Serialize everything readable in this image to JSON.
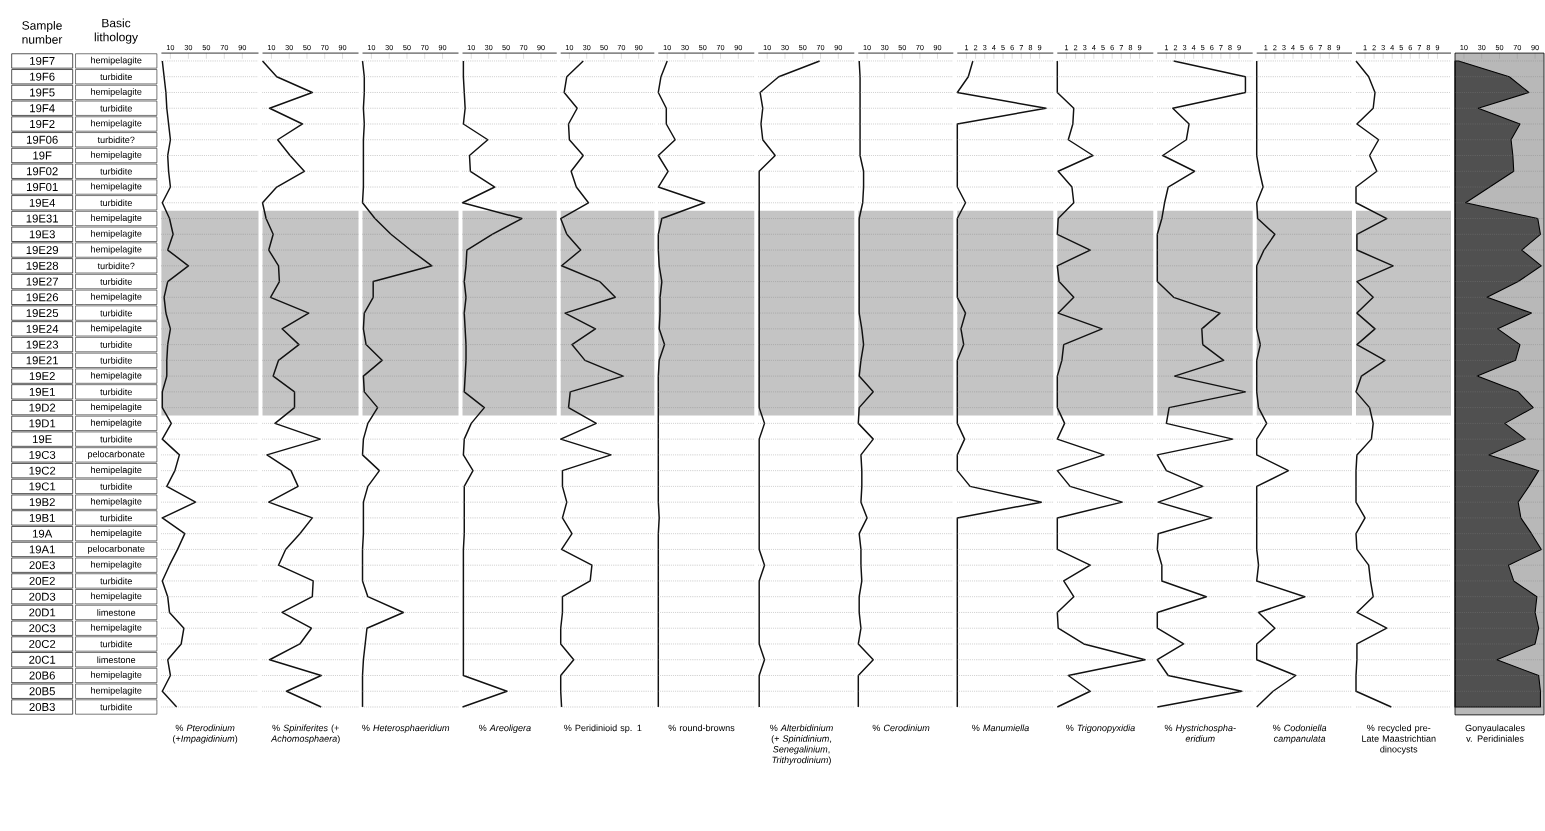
{
  "chart_data": [
    {
      "type": "line",
      "orientation": "horizontal",
      "grid": "y",
      "color": "#111111",
      "tick_labels": "x",
      "ylabel": "Sample number",
      "y2label": "Basic lithology",
      "categories": [
        "19F7",
        "19F6",
        "19F5",
        "19F4",
        "19F2",
        "19F06",
        "19F",
        "19F02",
        "19F01",
        "19E4",
        "19E31",
        "19E3",
        "19E29",
        "19E28",
        "19E27",
        "19E26",
        "19E25",
        "19E24",
        "19E23",
        "19E21",
        "19E2",
        "19E1",
        "19D2",
        "19D1",
        "19E",
        "19C3",
        "19C2",
        "19C1",
        "19B2",
        "19B1",
        "19A",
        "19A1",
        "20E3",
        "20E2",
        "20D3",
        "20D1",
        "20C3",
        "20C2",
        "20C1",
        "20B6",
        "20B5",
        "20B3"
      ],
      "y2_categories": [
        "hemipelagite",
        "turbidite",
        "hemipelagite",
        "turbidite",
        "hemipelagite",
        "turbidite?",
        "hemipelagite",
        "turbidite",
        "hemipelagite",
        "turbidite",
        "hemipelagite",
        "hemipelagite",
        "hemipelagite",
        "turbidite?",
        "turbidite",
        "hemipelagite",
        "turbidite",
        "hemipelagite",
        "turbidite",
        "turbidite",
        "hemipelagite",
        "turbidite",
        "hemipelagite",
        "hemipelagite",
        "turbidite",
        "pelocarbonate",
        "hemipelagite",
        "turbidite",
        "hemipelagite",
        "turbidite",
        "hemipelagite",
        "pelocarbonate",
        "hemipelagite",
        "turbidite",
        "hemipelagite",
        "limestone",
        "hemipelagite",
        "turbidite",
        "limestone",
        "hemipelagite",
        "hemipelagite",
        "turbidite"
      ],
      "values": [
        1,
        3,
        5,
        6,
        8,
        10,
        7,
        8,
        10,
        1,
        9,
        13,
        7,
        30,
        7,
        3,
        5,
        10,
        7,
        6,
        6,
        1,
        1,
        11,
        1,
        20,
        15,
        6,
        38,
        1,
        26,
        18,
        9,
        1,
        7,
        9,
        25,
        22,
        7,
        10,
        1,
        17
      ],
      "xlim": [
        0,
        108
      ],
      "xticks": [
        10,
        30,
        50,
        70,
        90
      ],
      "xlabel": "% *Pterodinium* (+*Impagidinium*)",
      "bands": [
        {
          "axis": "y",
          "from": "19E31",
          "to": "19D2",
          "color": "#c4c4c4"
        }
      ]
    },
    {
      "type": "line",
      "orientation": "horizontal",
      "grid": "y",
      "color": "#111111",
      "tick_labels": "x",
      "categories": [
        "19F7",
        "19F6",
        "19F5",
        "19F4",
        "19F2",
        "19F06",
        "19F",
        "19F02",
        "19F01",
        "19E4",
        "19E31",
        "19E3",
        "19E29",
        "19E28",
        "19E27",
        "19E26",
        "19E25",
        "19E24",
        "19E23",
        "19E21",
        "19E2",
        "19E1",
        "19D2",
        "19D1",
        "19E",
        "19C3",
        "19C2",
        "19C1",
        "19B2",
        "19B1",
        "19A",
        "19A1",
        "20E3",
        "20E2",
        "20D3",
        "20D1",
        "20C3",
        "20C2",
        "20C1",
        "20B6",
        "20B5",
        "20B3"
      ],
      "values": [
        0,
        16,
        56,
        8,
        45,
        17,
        31,
        47,
        16,
        0,
        4,
        12,
        7,
        18,
        19,
        9,
        52,
        22,
        41,
        18,
        12,
        36,
        36,
        14,
        65,
        5,
        32,
        40,
        7,
        56,
        42,
        26,
        18,
        57,
        56,
        22,
        55,
        42,
        8,
        66,
        27,
        66
      ],
      "xlim": [
        0,
        108
      ],
      "xticks": [
        10,
        30,
        50,
        70,
        90
      ],
      "xlabel": "% *Spiniferites* (+ *Achomosphaera*)",
      "bands": [
        {
          "axis": "y",
          "from": "19E31",
          "to": "19D2",
          "color": "#c4c4c4"
        }
      ]
    },
    {
      "type": "line",
      "orientation": "horizontal",
      "grid": "y",
      "color": "#111111",
      "tick_labels": "x",
      "categories": [
        "19F7",
        "19F6",
        "19F5",
        "19F4",
        "19F2",
        "19F06",
        "19F",
        "19F02",
        "19F01",
        "19E4",
        "19E31",
        "19E3",
        "19E29",
        "19E28",
        "19E27",
        "19E26",
        "19E25",
        "19E24",
        "19E23",
        "19E21",
        "19E2",
        "19E1",
        "19D2",
        "19D1",
        "19E",
        "19C3",
        "19C2",
        "19C1",
        "19B2",
        "19B1",
        "19A",
        "19A1",
        "20E3",
        "20E2",
        "20D3",
        "20D1",
        "20C3",
        "20C2",
        "20C1",
        "20B6",
        "20B5",
        "20B3"
      ],
      "values": [
        0,
        2,
        2,
        1,
        2,
        1,
        1,
        1,
        1,
        0,
        14,
        32,
        54,
        78,
        12,
        12,
        2,
        1,
        4,
        22,
        1,
        2,
        17,
        6,
        1,
        0,
        19,
        6,
        1,
        1,
        1,
        0,
        0,
        0,
        6,
        46,
        5,
        3,
        1,
        0,
        0,
        0
      ],
      "xlim": [
        0,
        108
      ],
      "xticks": [
        10,
        30,
        50,
        70,
        90
      ],
      "xlabel": "% *Heterosphaeridium*",
      "bands": [
        {
          "axis": "y",
          "from": "19E31",
          "to": "19D2",
          "color": "#c4c4c4"
        }
      ]
    },
    {
      "type": "line",
      "orientation": "horizontal",
      "grid": "y",
      "color": "#111111",
      "tick_labels": "x",
      "categories": [
        "19F7",
        "19F6",
        "19F5",
        "19F4",
        "19F2",
        "19F06",
        "19F",
        "19F02",
        "19F01",
        "19E4",
        "19E31",
        "19E3",
        "19E29",
        "19E28",
        "19E27",
        "19E26",
        "19E25",
        "19E24",
        "19E23",
        "19E21",
        "19E2",
        "19E1",
        "19D2",
        "19D1",
        "19E",
        "19C3",
        "19C2",
        "19C1",
        "19B2",
        "19B1",
        "19A",
        "19A1",
        "20E3",
        "20E2",
        "20D3",
        "20D1",
        "20C3",
        "20C2",
        "20C1",
        "20B6",
        "20B5",
        "20B3"
      ],
      "values": [
        1,
        1,
        2,
        3,
        1,
        29,
        8,
        9,
        37,
        0,
        68,
        34,
        5,
        4,
        2,
        4,
        2,
        3,
        4,
        4,
        3,
        2,
        25,
        10,
        2,
        1,
        12,
        2,
        2,
        2,
        2,
        1,
        1,
        1,
        1,
        1,
        1,
        1,
        1,
        1,
        51,
        0
      ],
      "xlim": [
        0,
        108
      ],
      "xticks": [
        10,
        30,
        50,
        70,
        90
      ],
      "xlabel": "% *Areoligera*",
      "bands": [
        {
          "axis": "y",
          "from": "19E31",
          "to": "19D2",
          "color": "#c4c4c4"
        }
      ]
    },
    {
      "type": "line",
      "orientation": "horizontal",
      "grid": "y",
      "color": "#111111",
      "tick_labels": "x",
      "categories": [
        "19F7",
        "19F6",
        "19F5",
        "19F4",
        "19F2",
        "19F06",
        "19F",
        "19F02",
        "19F01",
        "19E4",
        "19E31",
        "19E3",
        "19E29",
        "19E28",
        "19E27",
        "19E26",
        "19E25",
        "19E24",
        "19E23",
        "19E21",
        "19E2",
        "19E1",
        "19D2",
        "19D1",
        "19E",
        "19C3",
        "19C2",
        "19C1",
        "19B2",
        "19B1",
        "19A",
        "19A1",
        "20E3",
        "20E2",
        "20D3",
        "20D1",
        "20C3",
        "20C2",
        "20C1",
        "20B6",
        "20B5",
        "20B3"
      ],
      "values": [
        26,
        7,
        4,
        19,
        9,
        10,
        26,
        12,
        18,
        32,
        0,
        7,
        23,
        1,
        45,
        63,
        5,
        40,
        13,
        28,
        72,
        11,
        9,
        41,
        0,
        58,
        2,
        2,
        7,
        2,
        13,
        1,
        36,
        34,
        2,
        2,
        0,
        0,
        15,
        0,
        0,
        1
      ],
      "xlim": [
        0,
        108
      ],
      "xticks": [
        10,
        30,
        50,
        70,
        90
      ],
      "xlabel": "% Peridinioid sp. 1",
      "bands": [
        {
          "axis": "y",
          "from": "19E31",
          "to": "19D2",
          "color": "#c4c4c4"
        }
      ]
    },
    {
      "type": "line",
      "orientation": "horizontal",
      "grid": "y",
      "color": "#111111",
      "tick_labels": "x",
      "categories": [
        "19F7",
        "19F6",
        "19F5",
        "19F4",
        "19F2",
        "19F06",
        "19F",
        "19F02",
        "19F01",
        "19E4",
        "19E31",
        "19E3",
        "19E29",
        "19E28",
        "19E27",
        "19E26",
        "19E25",
        "19E24",
        "19E23",
        "19E21",
        "19E2",
        "19E1",
        "19D2",
        "19D1",
        "19E",
        "19C3",
        "19C2",
        "19C1",
        "19B2",
        "19B1",
        "19A",
        "19A1",
        "20E3",
        "20E2",
        "20D3",
        "20D1",
        "20C3",
        "20C2",
        "20C1",
        "20B6",
        "20B5",
        "20B3"
      ],
      "values": [
        10,
        3,
        0,
        9,
        9,
        19,
        0,
        11,
        0,
        52,
        4,
        0,
        0,
        1,
        4,
        2,
        2,
        1,
        7,
        1,
        0,
        0,
        0,
        0,
        0,
        0,
        0,
        0,
        0,
        1,
        0,
        0,
        0,
        0,
        0,
        0,
        0,
        0,
        0,
        0,
        0,
        0
      ],
      "xlim": [
        0,
        108
      ],
      "xticks": [
        10,
        30,
        50,
        70,
        90
      ],
      "xlabel": "% round-browns",
      "bands": [
        {
          "axis": "y",
          "from": "19E31",
          "to": "19D2",
          "color": "#c4c4c4"
        }
      ]
    },
    {
      "type": "line",
      "orientation": "horizontal",
      "grid": "y",
      "color": "#111111",
      "tick_labels": "x",
      "categories": [
        "19F7",
        "19F6",
        "19F5",
        "19F4",
        "19F2",
        "19F06",
        "19F",
        "19F02",
        "19F01",
        "19E4",
        "19E31",
        "19E3",
        "19E29",
        "19E28",
        "19E27",
        "19E26",
        "19E25",
        "19E24",
        "19E23",
        "19E21",
        "19E2",
        "19E1",
        "19D2",
        "19D1",
        "19E",
        "19C3",
        "19C2",
        "19C1",
        "19B2",
        "19B1",
        "19A",
        "19A1",
        "20E3",
        "20E2",
        "20D3",
        "20D1",
        "20C3",
        "20C2",
        "20C1",
        "20B6",
        "20B5",
        "20B3"
      ],
      "values": [
        69,
        23,
        2,
        5,
        3,
        5,
        19,
        1,
        1,
        1,
        1,
        1,
        1,
        1,
        1,
        1,
        1,
        1,
        1,
        1,
        1,
        1,
        1,
        7,
        1,
        1,
        1,
        1,
        1,
        1,
        1,
        1,
        7,
        1,
        1,
        1,
        1,
        1,
        7,
        1,
        1,
        1
      ],
      "xlim": [
        0,
        108
      ],
      "xticks": [
        10,
        30,
        50,
        70,
        90
      ],
      "xlabel": "% *Alterbidinium* (+ *Spinidinium*, *Senegalinium*, *Trithyrodinium*)",
      "bands": [
        {
          "axis": "y",
          "from": "19E31",
          "to": "19D2",
          "color": "#c4c4c4"
        }
      ]
    },
    {
      "type": "line",
      "orientation": "horizontal",
      "grid": "y",
      "color": "#111111",
      "tick_labels": "x",
      "categories": [
        "19F7",
        "19F6",
        "19F5",
        "19F4",
        "19F2",
        "19F06",
        "19F",
        "19F02",
        "19F01",
        "19E4",
        "19E31",
        "19E3",
        "19E29",
        "19E28",
        "19E27",
        "19E26",
        "19E25",
        "19E24",
        "19E23",
        "19E21",
        "19E2",
        "19E1",
        "19D2",
        "19D1",
        "19E",
        "19C3",
        "19C2",
        "19C1",
        "19B2",
        "19B1",
        "19A",
        "19A1",
        "20E3",
        "20E2",
        "20D3",
        "20D1",
        "20C3",
        "20C2",
        "20C1",
        "20B6",
        "20B5",
        "20B3"
      ],
      "values": [
        1,
        2,
        2,
        2,
        2,
        2,
        2,
        6,
        6,
        5,
        1,
        1,
        1,
        1,
        1,
        1,
        1,
        4,
        6,
        3,
        1,
        17,
        1,
        0,
        17,
        3,
        4,
        4,
        3,
        10,
        1,
        3,
        3,
        4,
        1,
        1,
        3,
        0,
        17,
        0,
        0,
        0
      ],
      "xlim": [
        0,
        108
      ],
      "xticks": [
        10,
        30,
        50,
        70,
        90
      ],
      "xlabel": "% *Cerodinium*",
      "bands": [
        {
          "axis": "y",
          "from": "19E31",
          "to": "19D2",
          "color": "#c4c4c4"
        }
      ]
    },
    {
      "type": "line",
      "orientation": "horizontal",
      "grid": "y",
      "color": "#111111",
      "tick_labels": "x",
      "categories": [
        "19F7",
        "19F6",
        "19F5",
        "19F4",
        "19F2",
        "19F06",
        "19F",
        "19F02",
        "19F01",
        "19E4",
        "19E31",
        "19E3",
        "19E29",
        "19E28",
        "19E27",
        "19E26",
        "19E25",
        "19E24",
        "19E23",
        "19E21",
        "19E2",
        "19E1",
        "19D2",
        "19D1",
        "19E",
        "19C3",
        "19C2",
        "19C1",
        "19B2",
        "19B1",
        "19A",
        "19A1",
        "20E3",
        "20E2",
        "20D3",
        "20D1",
        "20C3",
        "20C2",
        "20C1",
        "20B6",
        "20B5",
        "20B3"
      ],
      "values": [
        1.7,
        1.2,
        0,
        9.7,
        0,
        0,
        0,
        0,
        0,
        0.9,
        0,
        0,
        0,
        0,
        0,
        0,
        0.9,
        0.4,
        0.7,
        0,
        0,
        0,
        0,
        0,
        0.8,
        0,
        0,
        1.4,
        9.2,
        0,
        0,
        0,
        0,
        0,
        0,
        0,
        0,
        0,
        0,
        0,
        0,
        0
      ],
      "xlim": [
        0,
        10.5
      ],
      "xticks": [
        1,
        2,
        3,
        4,
        5,
        6,
        7,
        8,
        9
      ],
      "xlabel": "% *Manumiella*",
      "bands": [
        {
          "axis": "y",
          "from": "19E31",
          "to": "19D2",
          "color": "#c4c4c4"
        }
      ]
    },
    {
      "type": "line",
      "orientation": "horizontal",
      "grid": "y",
      "color": "#111111",
      "tick_labels": "x",
      "categories": [
        "19F7",
        "19F6",
        "19F5",
        "19F4",
        "19F2",
        "19F06",
        "19F",
        "19F02",
        "19F01",
        "19E4",
        "19E31",
        "19E3",
        "19E29",
        "19E28",
        "19E27",
        "19E26",
        "19E25",
        "19E24",
        "19E23",
        "19E21",
        "19E2",
        "19E1",
        "19D2",
        "19D1",
        "19E",
        "19C3",
        "19C2",
        "19C1",
        "19B2",
        "19B1",
        "19A",
        "19A1",
        "20E3",
        "20E2",
        "20D3",
        "20D1",
        "20C3",
        "20C2",
        "20C1",
        "20B6",
        "20B5",
        "20B3"
      ],
      "values": [
        0,
        0,
        0,
        1.8,
        1.7,
        1.2,
        3.9,
        0.1,
        1.6,
        1.8,
        0.1,
        0,
        3.6,
        0,
        0.2,
        1.8,
        0.1,
        4.9,
        0.7,
        0.5,
        0,
        0,
        0,
        0.8,
        0,
        5.1,
        0,
        1.4,
        7.1,
        0,
        0,
        0,
        3.6,
        0.7,
        1.8,
        0,
        0.1,
        2.9,
        9.6,
        1.2,
        3.6,
        0
      ],
      "xlim": [
        0,
        10.5
      ],
      "xticks": [
        1,
        2,
        3,
        4,
        5,
        6,
        7,
        8,
        9
      ],
      "xlabel": "% *Trigonopyxidia*",
      "bands": [
        {
          "axis": "y",
          "from": "19E31",
          "to": "19D2",
          "color": "#c4c4c4"
        }
      ]
    },
    {
      "type": "line",
      "orientation": "horizontal",
      "grid": "y",
      "color": "#111111",
      "tick_labels": "x",
      "categories": [
        "19F7",
        "19F6",
        "19F5",
        "19F4",
        "19F2",
        "19F06",
        "19F",
        "19F02",
        "19F01",
        "19E4",
        "19E31",
        "19E3",
        "19E29",
        "19E28",
        "19E27",
        "19E26",
        "19E25",
        "19E24",
        "19E23",
        "19E21",
        "19E2",
        "19E1",
        "19D2",
        "19D1",
        "19E",
        "19C3",
        "19C2",
        "19C1",
        "19B2",
        "19B1",
        "19A",
        "19A1",
        "20E3",
        "20E2",
        "20D3",
        "20D1",
        "20C3",
        "20C2",
        "20C1",
        "20B6",
        "20B5",
        "20B3"
      ],
      "values": [
        1.8,
        9.7,
        9.7,
        1.7,
        3.5,
        3.2,
        0.6,
        4.1,
        1.2,
        0.8,
        0.5,
        0,
        0,
        0,
        0,
        1.8,
        6.9,
        4.9,
        5.0,
        7.3,
        1.9,
        9.7,
        1.3,
        1.0,
        8.3,
        0,
        1.0,
        5.0,
        0.1,
        6.0,
        0.1,
        0,
        0.5,
        0.5,
        5.4,
        0,
        0,
        2.9,
        0,
        1.2,
        9.3,
        0
      ],
      "xlim": [
        0,
        10.5
      ],
      "xticks": [
        1,
        2,
        3,
        4,
        5,
        6,
        7,
        8,
        9
      ],
      "xlabel": "% *Hystrichospha-eridium*",
      "bands": [
        {
          "axis": "y",
          "from": "19E31",
          "to": "19D2",
          "color": "#c4c4c4"
        }
      ]
    },
    {
      "type": "line",
      "orientation": "horizontal",
      "grid": "y",
      "color": "#111111",
      "tick_labels": "x",
      "categories": [
        "19F7",
        "19F6",
        "19F5",
        "19F4",
        "19F2",
        "19F06",
        "19F",
        "19F02",
        "19F01",
        "19E4",
        "19E31",
        "19E3",
        "19E29",
        "19E28",
        "19E27",
        "19E26",
        "19E25",
        "19E24",
        "19E23",
        "19E21",
        "19E2",
        "19E1",
        "19D2",
        "19D1",
        "19E",
        "19C3",
        "19C2",
        "19C1",
        "19B2",
        "19B1",
        "19A",
        "19A1",
        "20E3",
        "20E2",
        "20D3",
        "20D1",
        "20C3",
        "20C2",
        "20C1",
        "20B6",
        "20B5",
        "20B3"
      ],
      "values": [
        0,
        0,
        0,
        0,
        0,
        0,
        0,
        0.3,
        0.7,
        0,
        0.1,
        2.0,
        0.8,
        0,
        0,
        0,
        0,
        0,
        0.4,
        0,
        0,
        0,
        0.2,
        1.1,
        0,
        0,
        3.5,
        0,
        0,
        0,
        0,
        0,
        0.2,
        0,
        5.3,
        0.2,
        2.0,
        0,
        0,
        4.3,
        1.8,
        0
      ],
      "xlim": [
        0,
        10.5
      ],
      "xticks": [
        1,
        2,
        3,
        4,
        5,
        6,
        7,
        8,
        9
      ],
      "xlabel": "% *Codoniella campanulata*",
      "bands": [
        {
          "axis": "y",
          "from": "19E31",
          "to": "19D2",
          "color": "#c4c4c4"
        }
      ]
    },
    {
      "type": "line",
      "orientation": "horizontal",
      "grid": "y",
      "color": "#111111",
      "tick_labels": "x",
      "categories": [
        "19F7",
        "19F6",
        "19F5",
        "19F4",
        "19F2",
        "19F06",
        "19F",
        "19F02",
        "19F01",
        "19E4",
        "19E31",
        "19E3",
        "19E29",
        "19E28",
        "19E27",
        "19E26",
        "19E25",
        "19E24",
        "19E23",
        "19E21",
        "19E2",
        "19E1",
        "19D2",
        "19D1",
        "19E",
        "19C3",
        "19C2",
        "19C1",
        "19B2",
        "19B1",
        "19A",
        "19A1",
        "20E3",
        "20E2",
        "20D3",
        "20D1",
        "20C3",
        "20C2",
        "20C1",
        "20B6",
        "20B5",
        "20B3"
      ],
      "values": [
        0,
        1.4,
        2.1,
        1.9,
        0.1,
        2.5,
        1.5,
        2.3,
        0,
        0,
        3.4,
        0.1,
        0.1,
        4.1,
        0.1,
        1.9,
        0.1,
        2.1,
        0.1,
        3.2,
        0.6,
        0,
        1.5,
        1.9,
        1.7,
        0.1,
        0,
        0,
        0,
        1.0,
        0,
        0.1,
        1.4,
        1.6,
        1.9,
        0.1,
        3.4,
        0.1,
        0.1,
        0,
        0,
        3.9
      ],
      "xlim": [
        0,
        10.5
      ],
      "xticks": [
        1,
        2,
        3,
        4,
        5,
        6,
        7,
        8,
        9
      ],
      "xlabel": "% recycled pre-Late Maastrichtian dinocysts",
      "bands": [
        {
          "axis": "y",
          "from": "19E31",
          "to": "19D2",
          "color": "#c4c4c4"
        }
      ]
    },
    {
      "type": "area",
      "orientation": "horizontal",
      "grid": "y",
      "color": "#505050",
      "tick_labels": "x",
      "categories": [
        "19F7",
        "19F6",
        "19F5",
        "19F4",
        "19F2",
        "19F06",
        "19F",
        "19F02",
        "19F01",
        "19E4",
        "19E31",
        "19E3",
        "19E29",
        "19E28",
        "19E27",
        "19E26",
        "19E25",
        "19E24",
        "19E23",
        "19E21",
        "19E2",
        "19E1",
        "19D2",
        "19D1",
        "19E",
        "19C3",
        "19C2",
        "19C1",
        "19B2",
        "19B1",
        "19A",
        "19A1",
        "20E3",
        "20E2",
        "20D3",
        "20D1",
        "20C3",
        "20C2",
        "20C1",
        "20B6",
        "20B5",
        "20B3"
      ],
      "values": [
        4,
        61,
        83,
        26,
        73,
        63,
        65,
        66,
        39,
        12,
        93,
        96,
        75,
        97,
        71,
        36,
        86,
        48,
        73,
        68,
        25,
        71,
        88,
        56,
        79,
        38,
        94,
        83,
        71,
        74,
        86,
        97,
        60,
        66,
        92,
        90,
        94,
        90,
        47,
        94,
        96,
        96
      ],
      "xlim": [
        0,
        100
      ],
      "xticks": [
        10,
        30,
        50,
        70,
        90
      ],
      "xlabel": "Gonyaulacales v. Peridiniales"
    }
  ]
}
